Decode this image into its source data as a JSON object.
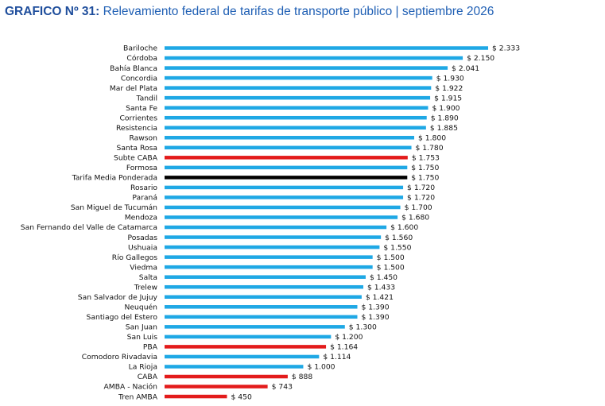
{
  "title_prefix": "GRAFICO Nº 31:",
  "title_text": "Relevamiento federal de tarifas de transporte público | septiembre 2026",
  "colors": {
    "default": "#1fa8e5",
    "highlight": "#e31b1b",
    "average": "#000000",
    "title": "#1f5fb4"
  },
  "chart_data": {
    "type": "bar",
    "orientation": "horizontal",
    "title": "Relevamiento federal de tarifas de transporte público | septiembre 2026",
    "xlim": [
      0,
      2333
    ],
    "grid": false,
    "value_prefix": "$ ",
    "categories": [
      "Bariloche",
      "Córdoba",
      "Bahía Blanca",
      "Concordia",
      "Mar del Plata",
      "Tandil",
      "Santa Fe",
      "Corrientes",
      "Resistencia",
      "Rawson",
      "Santa Rosa",
      "Subte CABA",
      "Formosa",
      "Tarifa Media Ponderada",
      "Rosario",
      "Paraná",
      "San Miguel de Tucumán",
      "Mendoza",
      "San Fernando del Valle de Catamarca",
      "Posadas",
      "Ushuaia",
      "Río Gallegos",
      "Viedma",
      "Salta",
      "Trelew",
      "San Salvador de Jujuy",
      "Neuquén",
      "Santiago del Estero",
      "San Juan",
      "San Luis",
      "PBA",
      "Comodoro Rivadavia",
      "La Rioja",
      "CABA",
      "AMBA - Nación",
      "Tren AMBA"
    ],
    "values": [
      2333,
      2150,
      2041,
      1930,
      1922,
      1915,
      1900,
      1890,
      1885,
      1800,
      1780,
      1753,
      1750,
      1750,
      1720,
      1720,
      1700,
      1680,
      1600,
      1560,
      1550,
      1500,
      1500,
      1450,
      1433,
      1421,
      1390,
      1390,
      1300,
      1200,
      1164,
      1114,
      1000,
      888,
      743,
      450
    ],
    "value_labels": [
      "$ 2.333",
      "$ 2.150",
      "$ 2.041",
      "$ 1.930",
      "$ 1.922",
      "$ 1.915",
      "$ 1.900",
      "$ 1.890",
      "$ 1.885",
      "$ 1.800",
      "$ 1.780",
      "$ 1.753",
      "$ 1.750",
      "$ 1.750",
      "$ 1.720",
      "$ 1.720",
      "$ 1.700",
      "$ 1.680",
      "$ 1.600",
      "$ 1.560",
      "$ 1.550",
      "$ 1.500",
      "$ 1.500",
      "$ 1.450",
      "$ 1.433",
      "$ 1.421",
      "$ 1.390",
      "$ 1.390",
      "$ 1.300",
      "$ 1.200",
      "$ 1.164",
      "$ 1.114",
      "$ 1.000",
      "$ 888",
      "$ 743",
      "$ 450"
    ],
    "highlighted": [
      "Subte CABA",
      "PBA",
      "CABA",
      "AMBA - Nación",
      "Tren AMBA"
    ],
    "average_category": "Tarifa Media Ponderada"
  }
}
